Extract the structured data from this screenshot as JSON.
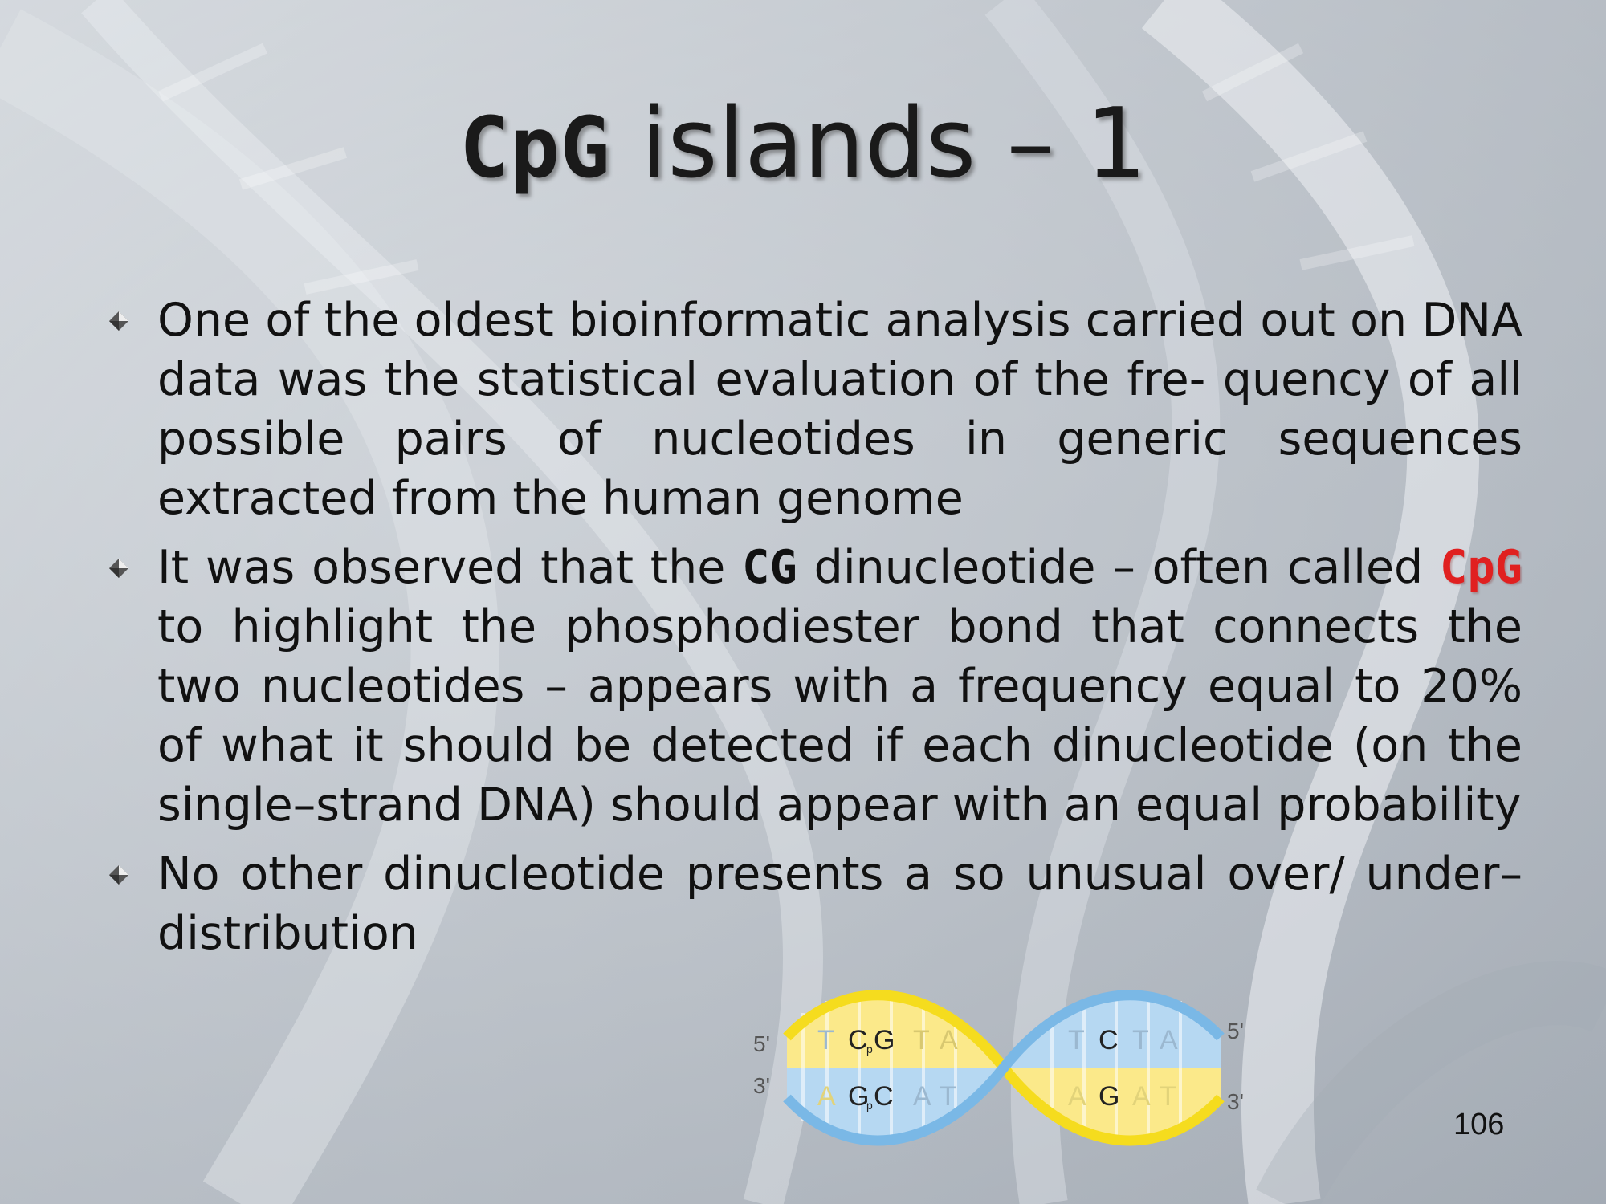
{
  "slide": {
    "title": {
      "mono_part": "CpG",
      "rest": " islands – 1"
    },
    "bullets": [
      {
        "text_1": "One of the oldest bioinformatic analysis carried out on DNA data was the statistical evaluation of the fre- quency of all possible pairs of nucleotides in generic sequences extracted from the human genome"
      },
      {
        "text_1": "It was observed that the ",
        "code_1": "CG",
        "text_2": " dinucleotide – often called ",
        "code_2": "CpG",
        "text_3": " to highlight the phosphodiester bond that connects the two nucleotides – appears with a frequency equal to 20% of what it should be detected if each dinucleotide (on the single–strand DNA) should appear with an equal probability"
      },
      {
        "text_1": "No other dinucleotide presents a so unusual over/ under–distribution"
      }
    ],
    "figure": {
      "left_top_label": "5'",
      "left_bottom_label": "3'",
      "right_top_label": "5'",
      "right_bottom_label": "3'",
      "top_strand_1": [
        "T",
        "C",
        "G",
        "T",
        "A"
      ],
      "bottom_strand_1": [
        "A",
        "G",
        "C",
        "A",
        "T"
      ],
      "top_strand_2": [
        "T",
        "C",
        "T",
        "A"
      ],
      "bottom_strand_2": [
        "A",
        "G",
        "A",
        "T"
      ],
      "bond_label": "p",
      "colors": {
        "yellow": "#f5dc1e",
        "blue": "#7ab8e6",
        "light_yellow": "#fbe98a",
        "light_blue": "#b6d8f2"
      }
    },
    "page_number": "106"
  }
}
